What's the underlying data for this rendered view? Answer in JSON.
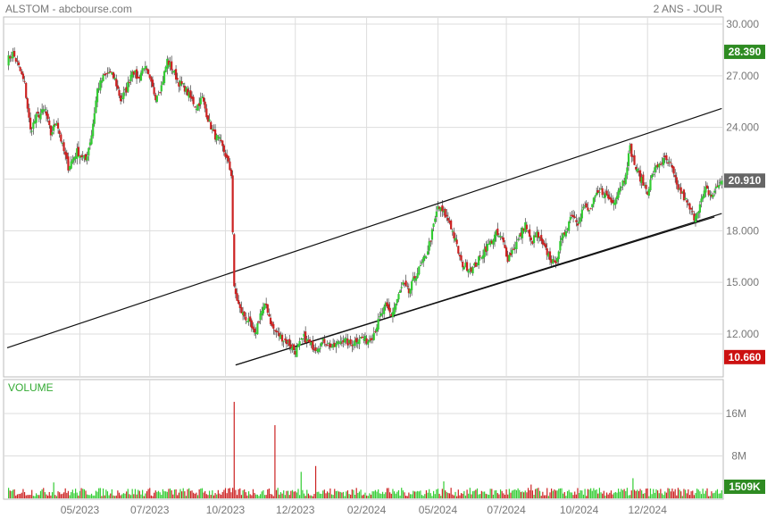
{
  "header": {
    "title": "ALSTOM - abcbourse.com",
    "period": "2 ANS - JOUR"
  },
  "volume_panel": {
    "title": "VOLUME",
    "last_volume_label": "1509K"
  },
  "colors": {
    "up": "#33cc33",
    "down": "#cc2222",
    "grid": "#dddddd",
    "text": "#777777",
    "badge_high": "#2e8b22",
    "badge_last": "#666666",
    "badge_low": "#cc1111",
    "badge_volume": "#2e8b22",
    "volume_title": "#33aa33"
  },
  "chart_data": [
    {
      "type": "candlestick",
      "x_tick_labels": [
        "05/2023",
        "07/2023",
        "10/2023",
        "12/2023",
        "02/2024",
        "05/2024",
        "07/2024",
        "10/2024",
        "12/2024"
      ],
      "y_tick_labels": [
        "30.000",
        "27.000",
        "24.000",
        "21.000",
        "18.000",
        "15.000",
        "12.000"
      ],
      "y_ticks": [
        30,
        27,
        24,
        21,
        18,
        15,
        12
      ],
      "ylim": [
        10.2,
        30.3
      ],
      "badges": {
        "high": {
          "label": "28.390",
          "value": 28.39
        },
        "last": {
          "label": "20.910",
          "value": 20.91
        },
        "low": {
          "label": "10.660",
          "value": 10.66
        }
      },
      "close_path": [
        [
          0,
          27.9
        ],
        [
          4,
          28.3
        ],
        [
          8,
          27.5
        ],
        [
          12,
          26.5
        ],
        [
          16,
          23.8
        ],
        [
          20,
          24.6
        ],
        [
          26,
          25.0
        ],
        [
          30,
          23.6
        ],
        [
          34,
          24.4
        ],
        [
          38,
          22.9
        ],
        [
          42,
          21.7
        ],
        [
          48,
          22.6
        ],
        [
          54,
          22.1
        ],
        [
          58,
          23.6
        ],
        [
          62,
          26.2
        ],
        [
          66,
          26.9
        ],
        [
          70,
          27.2
        ],
        [
          74,
          26.8
        ],
        [
          78,
          25.6
        ],
        [
          82,
          26.2
        ],
        [
          86,
          27.4
        ],
        [
          90,
          26.8
        ],
        [
          94,
          27.6
        ],
        [
          98,
          26.7
        ],
        [
          102,
          25.8
        ],
        [
          106,
          26.4
        ],
        [
          110,
          27.9
        ],
        [
          114,
          27.3
        ],
        [
          118,
          26.6
        ],
        [
          122,
          26.3
        ],
        [
          126,
          25.7
        ],
        [
          130,
          25.2
        ],
        [
          134,
          25.7
        ],
        [
          138,
          24.5
        ],
        [
          142,
          23.6
        ],
        [
          146,
          23.2
        ],
        [
          150,
          22.4
        ],
        [
          154,
          21.3
        ],
        [
          156,
          14.6
        ],
        [
          160,
          13.4
        ],
        [
          166,
          12.7
        ],
        [
          170,
          11.9
        ],
        [
          174,
          13.2
        ],
        [
          178,
          13.7
        ],
        [
          182,
          12.4
        ],
        [
          186,
          12.0
        ],
        [
          190,
          11.7
        ],
        [
          194,
          11.4
        ],
        [
          198,
          11.0
        ],
        [
          204,
          11.8
        ],
        [
          208,
          11.4
        ],
        [
          212,
          11.2
        ],
        [
          218,
          11.6
        ],
        [
          224,
          11.2
        ],
        [
          230,
          11.7
        ],
        [
          236,
          11.4
        ],
        [
          242,
          11.8
        ],
        [
          248,
          11.6
        ],
        [
          252,
          12.1
        ],
        [
          256,
          12.9
        ],
        [
          260,
          13.6
        ],
        [
          264,
          13.1
        ],
        [
          268,
          14.0
        ],
        [
          272,
          14.9
        ],
        [
          276,
          14.4
        ],
        [
          280,
          15.3
        ],
        [
          284,
          15.9
        ],
        [
          288,
          16.6
        ],
        [
          292,
          17.9
        ],
        [
          296,
          19.4
        ],
        [
          300,
          19.0
        ],
        [
          304,
          18.5
        ],
        [
          308,
          17.4
        ],
        [
          312,
          16.1
        ],
        [
          316,
          15.9
        ],
        [
          320,
          15.8
        ],
        [
          324,
          16.3
        ],
        [
          328,
          16.9
        ],
        [
          332,
          17.3
        ],
        [
          336,
          17.8
        ],
        [
          340,
          17.5
        ],
        [
          344,
          16.4
        ],
        [
          348,
          17.0
        ],
        [
          352,
          17.6
        ],
        [
          356,
          18.4
        ],
        [
          360,
          17.3
        ],
        [
          364,
          17.8
        ],
        [
          368,
          17.1
        ],
        [
          372,
          16.6
        ],
        [
          376,
          16.0
        ],
        [
          380,
          17.2
        ],
        [
          384,
          18.1
        ],
        [
          388,
          19.0
        ],
        [
          392,
          18.5
        ],
        [
          396,
          19.4
        ],
        [
          400,
          19.1
        ],
        [
          404,
          19.9
        ],
        [
          408,
          20.3
        ],
        [
          412,
          20.0
        ],
        [
          416,
          19.6
        ],
        [
          420,
          20.4
        ],
        [
          424,
          21.0
        ],
        [
          428,
          22.8
        ],
        [
          432,
          21.6
        ],
        [
          436,
          20.9
        ],
        [
          440,
          20.3
        ],
        [
          444,
          21.4
        ],
        [
          448,
          21.9
        ],
        [
          452,
          22.1
        ],
        [
          456,
          21.8
        ],
        [
          460,
          20.6
        ],
        [
          464,
          20.1
        ],
        [
          468,
          19.4
        ],
        [
          472,
          18.8
        ],
        [
          476,
          19.5
        ],
        [
          480,
          20.4
        ],
        [
          484,
          20.0
        ],
        [
          488,
          20.6
        ],
        [
          491,
          20.91
        ]
      ],
      "channel_lines": [
        [
          [
            0,
            11.2
          ],
          [
            491,
            25.1
          ]
        ],
        [
          [
            157,
            10.2
          ],
          [
            491,
            19.0
          ]
        ],
        [
          [
            157,
            10.2
          ],
          [
            486,
            18.8
          ]
        ]
      ]
    },
    {
      "type": "bar",
      "y_tick_labels": [
        "16M",
        "8M"
      ],
      "y_ticks": [
        16,
        8
      ],
      "ylim": [
        0,
        22
      ],
      "unit": "M",
      "last_value_m": 1.509,
      "spikes": [
        {
          "x": 156,
          "value_m": 18.2
        },
        {
          "x": 184,
          "value_m": 13.8
        },
        {
          "x": 212,
          "value_m": 6.1
        },
        {
          "x": 202,
          "value_m": 5.0
        },
        {
          "x": 430,
          "value_m": 3.8
        },
        {
          "x": 32,
          "value_m": 3.0
        },
        {
          "x": 300,
          "value_m": 3.2
        },
        {
          "x": 360,
          "value_m": 2.6
        }
      ]
    }
  ]
}
